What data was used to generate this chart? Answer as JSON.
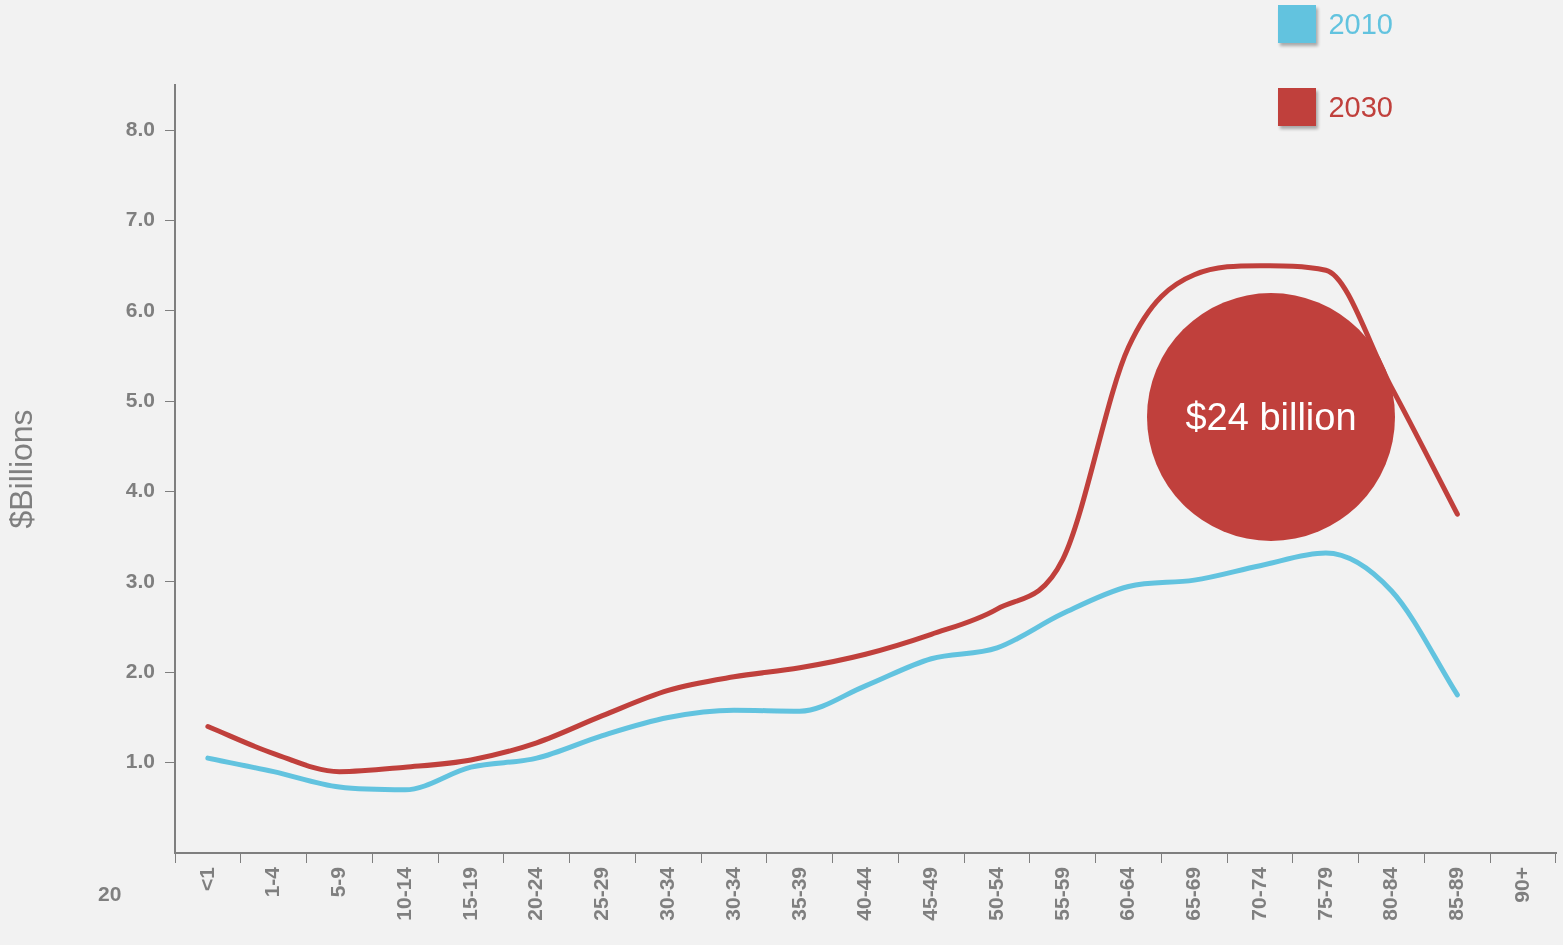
{
  "chart_data": {
    "type": "line",
    "ylabel": "$Billions",
    "categories": [
      "<1",
      "1-4",
      "5-9",
      "10-14",
      "15-19",
      "20-24",
      "25-29",
      "30-34",
      "30-34",
      "35-39",
      "40-44",
      "45-49",
      "50-54",
      "55-59",
      "60-64",
      "65-69",
      "70-74",
      "75-79",
      "80-84",
      "85-89",
      "90+"
    ],
    "series": [
      {
        "name": "2010",
        "color": "#62c3df",
        "values": [
          1.05,
          0.9,
          0.73,
          0.7,
          0.95,
          1.05,
          1.3,
          1.5,
          1.58,
          1.57,
          1.85,
          2.15,
          2.27,
          2.65,
          2.95,
          3.02,
          3.18,
          3.32,
          2.9,
          1.75,
          null
        ]
      },
      {
        "name": "2030",
        "color": "#c0403c",
        "values": [
          1.4,
          1.1,
          0.9,
          0.95,
          1.03,
          1.22,
          1.52,
          1.8,
          1.95,
          2.05,
          2.2,
          2.42,
          2.7,
          3.25,
          5.6,
          6.4,
          6.5,
          6.45,
          5.15,
          3.75,
          null
        ]
      }
    ],
    "ylim": [
      0,
      8.5
    ],
    "yticks": [
      {
        "value": 1,
        "label": "1.0"
      },
      {
        "value": 2,
        "label": "2.0"
      },
      {
        "value": 3,
        "label": "3.0"
      },
      {
        "value": 4,
        "label": "4.0"
      },
      {
        "value": 5,
        "label": "5.0"
      },
      {
        "value": 6,
        "label": "6.0"
      },
      {
        "value": 7,
        "label": "7.0"
      },
      {
        "value": 8,
        "label": "8.0"
      }
    ],
    "grid": false,
    "legend": "top right",
    "marker": "none",
    "line_style": "solid",
    "annotations": [
      "20",
      "$24 billion"
    ]
  }
}
